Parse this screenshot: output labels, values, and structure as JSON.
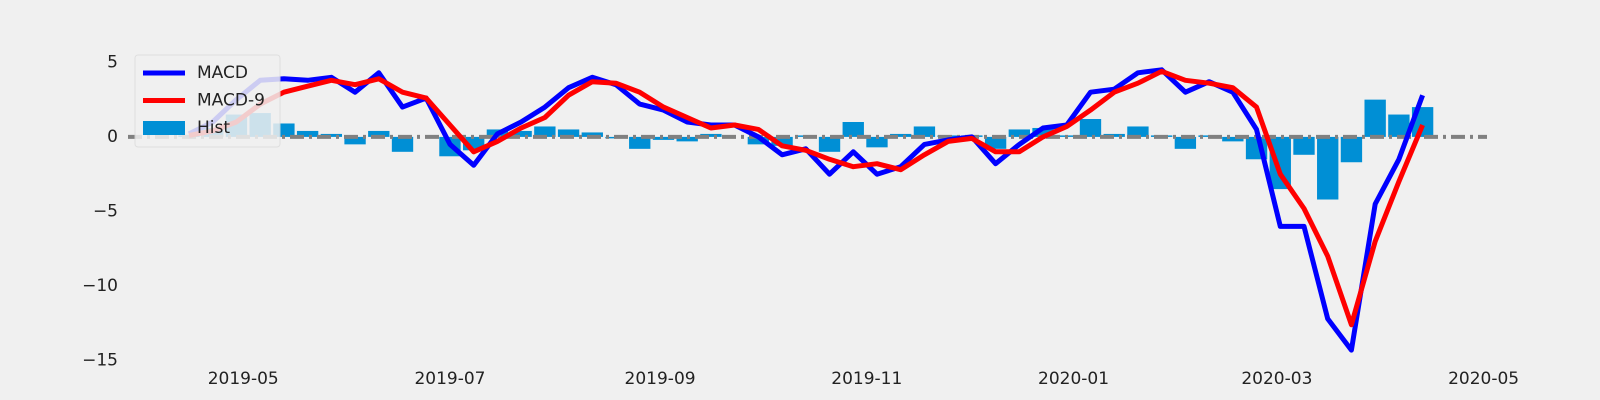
{
  "chart_data": {
    "type": "line",
    "x": [
      "2019-04-15",
      "2019-04-22",
      "2019-04-29",
      "2019-05-06",
      "2019-05-13",
      "2019-05-20",
      "2019-05-27",
      "2019-06-03",
      "2019-06-10",
      "2019-06-17",
      "2019-06-24",
      "2019-07-01",
      "2019-07-08",
      "2019-07-15",
      "2019-07-22",
      "2019-07-29",
      "2019-08-05",
      "2019-08-12",
      "2019-08-19",
      "2019-08-26",
      "2019-09-02",
      "2019-09-09",
      "2019-09-16",
      "2019-09-23",
      "2019-09-30",
      "2019-10-07",
      "2019-10-14",
      "2019-10-21",
      "2019-10-28",
      "2019-11-04",
      "2019-11-11",
      "2019-11-18",
      "2019-11-25",
      "2019-12-02",
      "2019-12-09",
      "2019-12-16",
      "2019-12-23",
      "2019-12-30",
      "2020-01-06",
      "2020-01-13",
      "2020-01-20",
      "2020-01-27",
      "2020-02-03",
      "2020-02-10",
      "2020-02-17",
      "2020-02-24",
      "2020-03-02",
      "2020-03-09",
      "2020-03-16",
      "2020-03-23",
      "2020-03-30",
      "2020-04-06",
      "2020-04-13"
    ],
    "series": [
      {
        "name": "MACD",
        "color": "#0000ff",
        "kind": "line",
        "values": [
          0.2,
          1.0,
          2.5,
          3.8,
          3.9,
          3.8,
          4.0,
          3.0,
          4.3,
          2.0,
          2.6,
          -0.5,
          -1.9,
          0.2,
          1.0,
          2.0,
          3.3,
          4.0,
          3.5,
          2.2,
          1.8,
          1.0,
          0.8,
          0.8,
          0.0,
          -1.2,
          -0.8,
          -2.5,
          -1.0,
          -2.5,
          -2.0,
          -0.5,
          -0.2,
          0.0,
          -1.8,
          -0.5,
          0.6,
          0.8,
          3.0,
          3.2,
          4.3,
          4.5,
          3.0,
          3.7,
          3.0,
          0.5,
          -6.0,
          -6.0,
          -12.2,
          -14.3,
          -4.5,
          -1.5,
          2.8
        ]
      },
      {
        "name": "MACD-9",
        "color": "#ff0000",
        "kind": "line",
        "values": [
          0.1,
          0.4,
          1.0,
          2.2,
          3.0,
          3.4,
          3.8,
          3.5,
          3.9,
          3.0,
          2.6,
          0.8,
          -1.0,
          -0.3,
          0.6,
          1.3,
          2.8,
          3.7,
          3.6,
          3.0,
          2.0,
          1.3,
          0.6,
          0.8,
          0.5,
          -0.6,
          -0.9,
          -1.5,
          -2.0,
          -1.8,
          -2.2,
          -1.2,
          -0.3,
          -0.1,
          -1.0,
          -1.0,
          0.0,
          0.7,
          1.8,
          3.0,
          3.6,
          4.4,
          3.8,
          3.6,
          3.3,
          2.0,
          -2.5,
          -4.8,
          -8.0,
          -12.6,
          -7.0,
          -3.0,
          0.8
        ]
      },
      {
        "name": "Hist",
        "color": "#008fd5",
        "kind": "bar",
        "values": [
          0.1,
          0.6,
          1.5,
          1.6,
          0.9,
          0.4,
          0.2,
          -0.5,
          0.4,
          -1.0,
          0.0,
          -1.3,
          -0.9,
          0.5,
          0.4,
          0.7,
          0.5,
          0.3,
          -0.1,
          -0.8,
          -0.2,
          -0.3,
          0.2,
          0.0,
          -0.5,
          -0.6,
          0.1,
          -1.0,
          1.0,
          -0.7,
          0.2,
          0.7,
          0.1,
          0.1,
          -0.8,
          0.5,
          0.6,
          0.1,
          1.2,
          0.2,
          0.7,
          0.1,
          -0.8,
          0.1,
          -0.3,
          -1.5,
          -3.5,
          -1.2,
          -4.2,
          -1.7,
          2.5,
          1.5,
          2.0
        ]
      }
    ],
    "xlim": [
      "2019-03-28",
      "2020-05-02"
    ],
    "xticks": [
      "2019-05",
      "2019-07",
      "2019-09",
      "2019-11",
      "2020-01",
      "2020-03",
      "2020-05"
    ],
    "ylim": [
      -15.3,
      6.5
    ],
    "yticks": [
      {
        "value": -15,
        "label": "−15"
      },
      {
        "value": -10,
        "label": "−10"
      },
      {
        "value": -5,
        "label": "−5"
      },
      0,
      5
    ],
    "zero_line": true,
    "legend": "upper left"
  }
}
